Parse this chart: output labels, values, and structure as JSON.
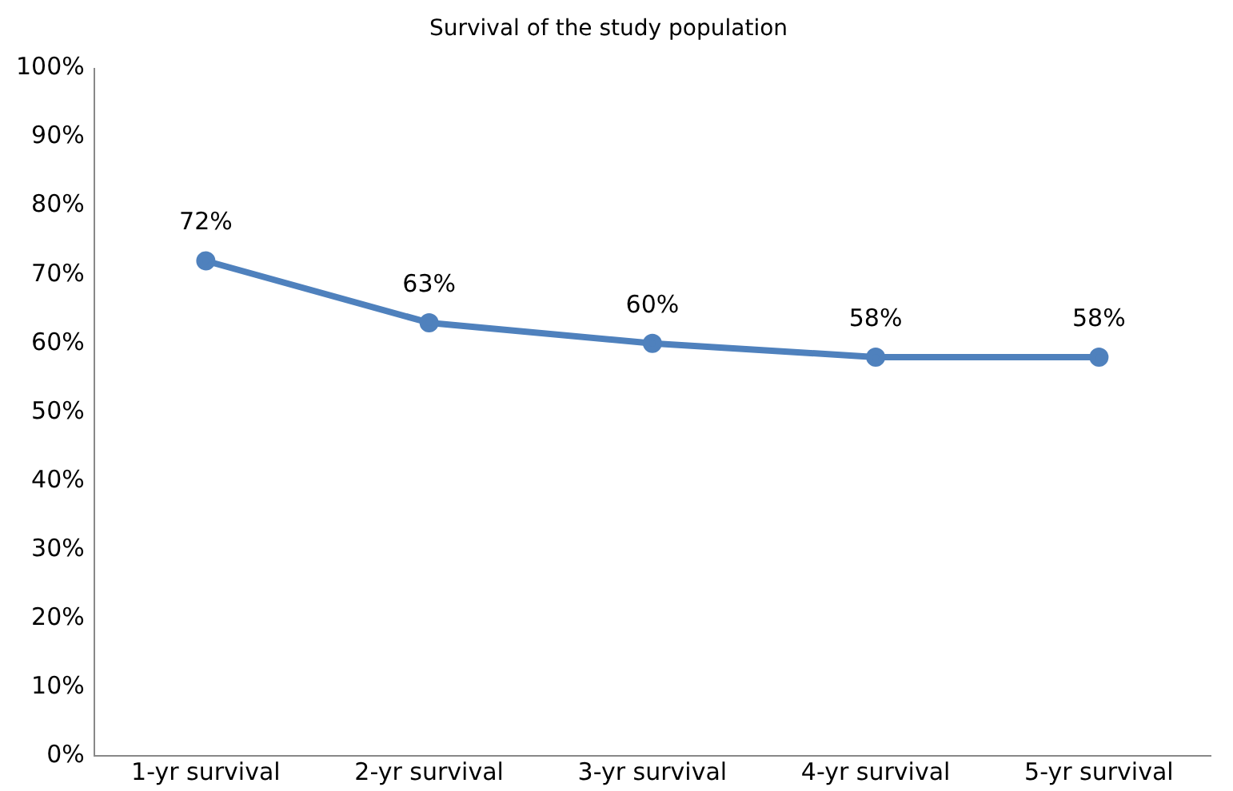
{
  "chart_data": {
    "type": "line",
    "title": "Survival of the study population",
    "categories": [
      "1-yr survival",
      "2-yr survival",
      "3-yr survival",
      "4-yr survival",
      "5-yr survival"
    ],
    "series": [
      {
        "color": "#4f81bd",
        "values": [
          72,
          63,
          60,
          58,
          58
        ],
        "value_labels": [
          "72%",
          "63%",
          "60%",
          "58%",
          "58%"
        ]
      }
    ],
    "ylim": [
      0,
      100
    ],
    "yticks": [
      {
        "value": 0,
        "label": "0%"
      },
      {
        "value": 10,
        "label": "10%"
      },
      {
        "value": 20,
        "label": "20%"
      },
      {
        "value": 30,
        "label": "30%"
      },
      {
        "value": 40,
        "label": "40%"
      },
      {
        "value": 50,
        "label": "50%"
      },
      {
        "value": 60,
        "label": "60%"
      },
      {
        "value": 70,
        "label": "70%"
      },
      {
        "value": 80,
        "label": "80%"
      },
      {
        "value": 90,
        "label": "90%"
      },
      {
        "value": 100,
        "label": "100%"
      }
    ],
    "grid": false,
    "legend": false,
    "marker": "circle",
    "line_style": "solid"
  }
}
